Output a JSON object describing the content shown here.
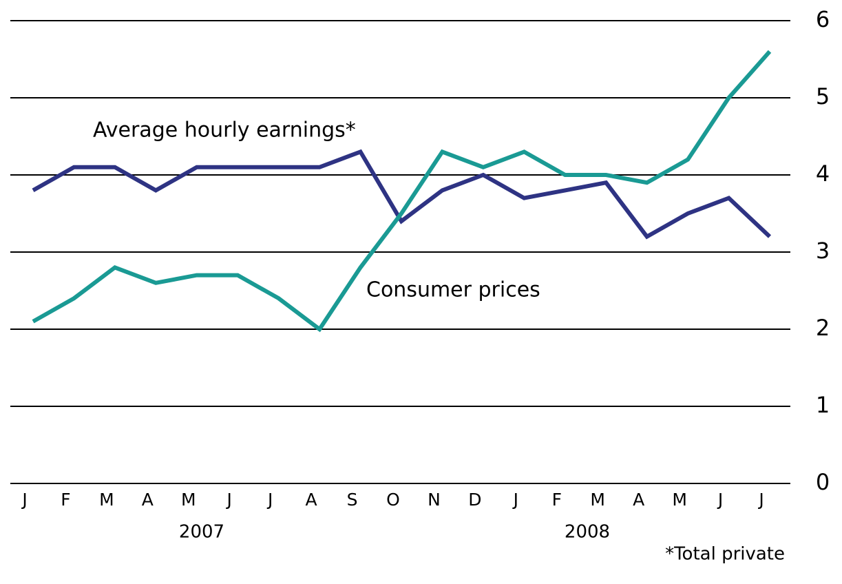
{
  "chart_data": {
    "type": "line",
    "categories": [
      "J",
      "F",
      "M",
      "A",
      "M",
      "J",
      "J",
      "A",
      "S",
      "O",
      "N",
      "D",
      "J",
      "F",
      "M",
      "A",
      "M",
      "J",
      "J"
    ],
    "x_groups": [
      "2007",
      "2008"
    ],
    "series": [
      {
        "name": "Average hourly earnings*",
        "color": "#2e3383",
        "values": [
          3.8,
          4.1,
          4.1,
          3.8,
          4.1,
          4.1,
          4.1,
          4.1,
          4.3,
          3.4,
          3.8,
          4.0,
          3.7,
          3.8,
          3.9,
          3.2,
          3.5,
          3.7,
          3.2
        ]
      },
      {
        "name": "Consumer prices",
        "color": "#1a9a94",
        "values": [
          2.1,
          2.4,
          2.8,
          2.6,
          2.7,
          2.7,
          2.4,
          2.0,
          2.8,
          3.5,
          4.3,
          4.1,
          4.3,
          4.0,
          4.0,
          3.9,
          4.2,
          5.0,
          5.6
        ]
      }
    ],
    "ylim": [
      0,
      6
    ],
    "yticks": [
      0,
      1,
      2,
      3,
      4,
      5,
      6
    ],
    "grid": true,
    "footnote": "*Total private"
  }
}
